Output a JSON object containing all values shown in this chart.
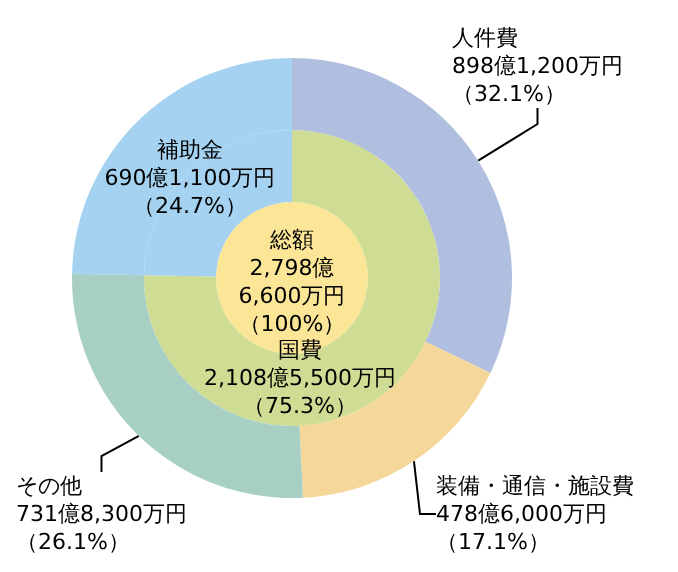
{
  "chart_data": [
    {
      "type": "donut",
      "categories": [
        "人件費",
        "装備・通信・施設費",
        "その他",
        "補助金"
      ],
      "values": [
        32.1,
        17.1,
        26.1,
        24.7
      ],
      "colors": [
        "#b0bedf",
        "#f5d79a",
        "#a8cfc4",
        "#a4d2f0"
      ],
      "value_labels": [
        "898億1,200万円（32.1%）",
        "478億6,000万円（17.1%）",
        "731億8,300万円（26.1%）",
        "690億1,100万円（24.7%）"
      ]
    },
    {
      "type": "donut",
      "categories": [
        "国費",
        null
      ],
      "values": [
        75.3,
        24.7
      ],
      "colors": [
        "#cfdc93",
        "#a4d2f0"
      ],
      "value_labels": [
        "2,108億5,500万円（75.3%）",
        null
      ]
    },
    {
      "type": "pie",
      "categories": [
        "総額"
      ],
      "values": [
        100
      ],
      "colors": [
        "#fbe597"
      ],
      "value_labels": [
        "2,798億6,600万円（100%）"
      ]
    }
  ]
}
